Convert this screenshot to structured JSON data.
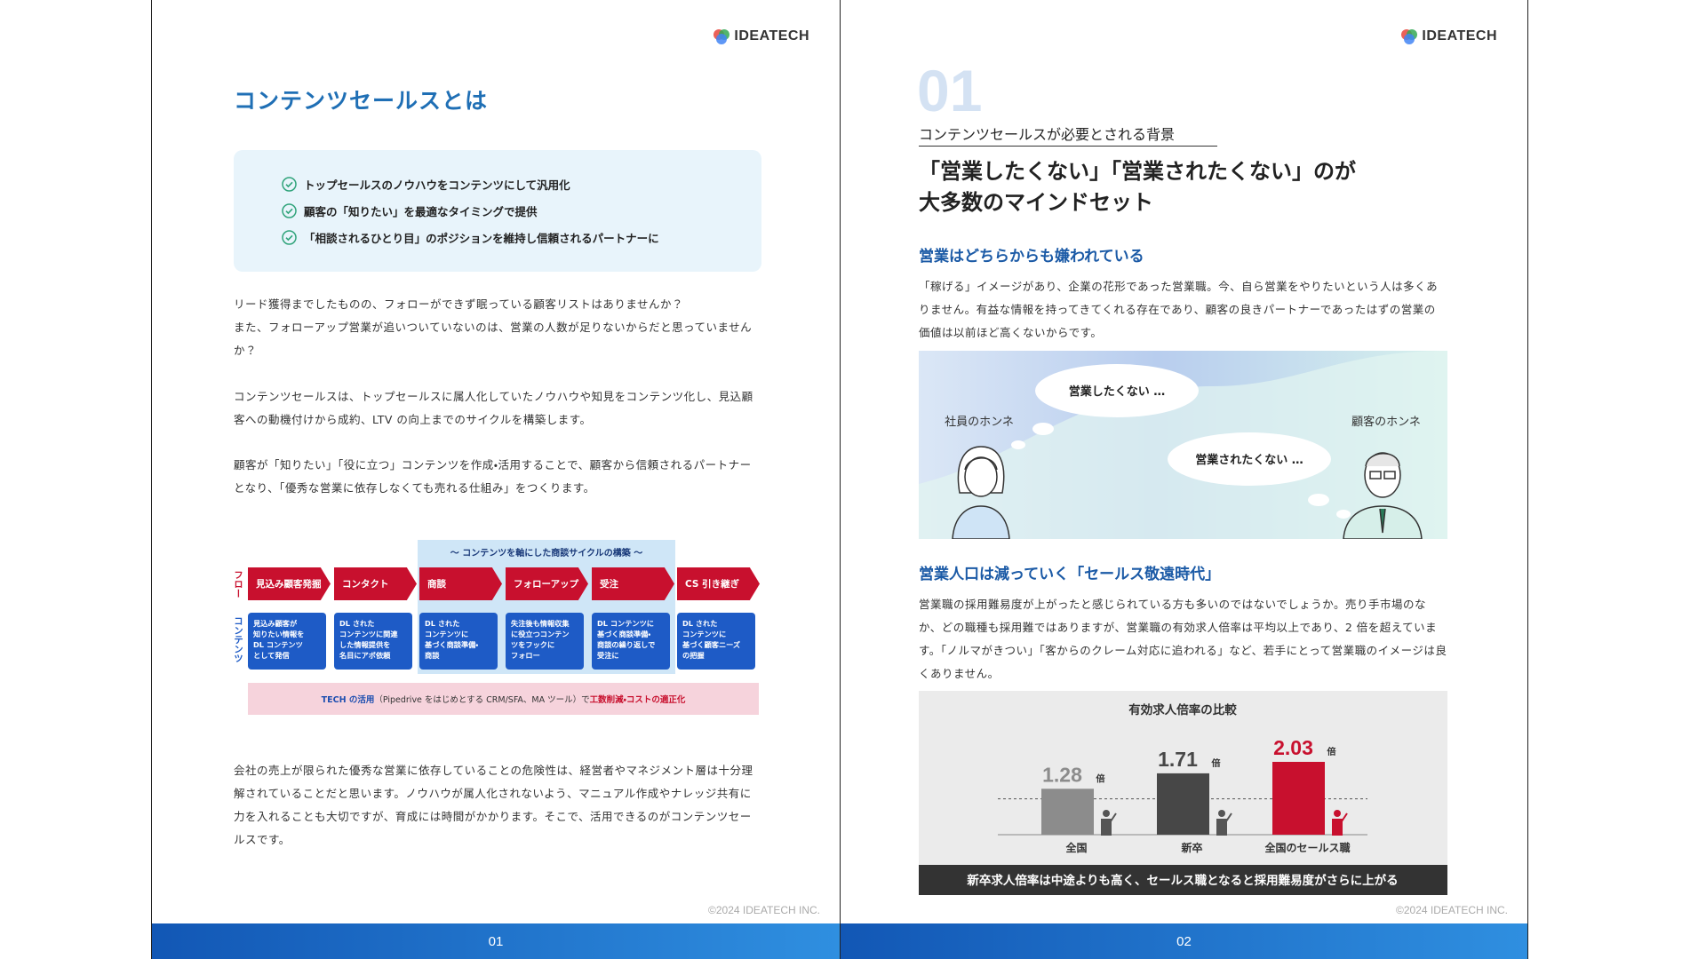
{
  "pages": [
    {
      "logo": "IDEATECH",
      "title": "コンテンツセールスとは",
      "checklist": [
        "トップセールスのノウハウをコンテンツにして汎用化",
        "顧客の「知りたい」を最適なタイミングで提供",
        "「相談されるひとり目」のポジションを維持し信頼されるパートナーに"
      ],
      "paragraphs": [
        "リード獲得までしたものの、フォローができず眠っている顧客リストはありませんか？\nまた、フォローアップ営業が追いついていないのは、営業の人数が足りないからだと思っていませんか？",
        "コンテンツセールスは、トップセールスに属人化していたノウハウや知見をコンテンツ化し、見込顧客への動機付けから成約、LTV の向上までのサイクルを構築します。",
        "顧客が「知りたい」「役に立つ」コンテンツを作成・活用することで、顧客から信頼されるパートナーとなり、「優秀な営業に依存しなくても売れる仕組み」をつくります。"
      ],
      "diagram": {
        "header": "〜 コンテンツを軸にした商談サイクルの構築 〜",
        "flow_label": "フロー",
        "content_label": "コンテンツ",
        "steps": [
          "見込み顧客発掘",
          "コンタクト",
          "商談",
          "フォローアップ",
          "受注",
          "CS 引き継ぎ"
        ],
        "contents": [
          "見込み顧客が\n知りたい情報を\nDL コンテンツ\nとして発信",
          "DL された\nコンテンツに関連\nした情報提供を\n名目にアポ依頼",
          "DL された\nコンテンツに\n基づく商談準備・\n商談",
          "失注後も情報収集\nに役立つコンテン\nツをフックに\nフォロー",
          "DL コンテンツに\n基づく商談準備・\n商談の繰り返しで\n受注に",
          "DL された\nコンテンツに\n基づく顧客ニーズ\nの把握"
        ],
        "footer": [
          "TECH の活用",
          "（Pipedrive をはじめとする CRM/SFA、MA ツール）で",
          "工数削減・コストの適正化"
        ]
      },
      "closing": "会社の売上が限られた優秀な営業に依存していることの危険性は、経営者やマネジメント層は十分理解されていることだと思います。ノウハウが属人化されないよう、マニュアル作成やナレッジ共有に力を入れることも大切ですが、育成には時間がかかります。そこで、活用できるのがコンテンツセールスです。",
      "copyright": "©2024 IDEATECH INC.",
      "page_number": "01"
    },
    {
      "logo": "IDEATECH",
      "section_number": "01",
      "section_label": "コンテンツセールスが必要とされる背景",
      "heading": [
        "「営業したくない」「営業されたくない」のが",
        "大多数のマインドセット"
      ],
      "subheading1": "営業はどちらからも嫌われている",
      "paragraph1": "「稼げる」イメージがあり、企業の花形であった営業職。今、自ら営業をやりたいという人は多くありません。有益な情報を持ってきてくれる存在であり、顧客の良きパートナーであったはずの営業の価値は以前ほど高くないからです。",
      "illustration": {
        "left_label": "社員のホンネ",
        "right_label": "顧客のホンネ",
        "left_bubble": "営業したくない …",
        "right_bubble": "営業されたくない …"
      },
      "subheading2": "営業人口は減っていく「セールス敬遠時代」",
      "paragraph2": "営業職の採用難易度が上がったと感じられている方も多いのではないでしょうか。売り手市場のなか、どの職種も採用難ではありますが、営業職の有効求人倍率は平均以上であり、2 倍を超えています。「ノルマがきつい」「客からのクレーム対応に追われる」など、若手にとって営業職のイメージは良くありません。",
      "chart": {
        "type": "bar",
        "title": "有効求人倍率の比較",
        "categories": [
          "全国",
          "新卒",
          "全国のセールス職"
        ],
        "values": [
          1.28,
          1.71,
          2.03
        ],
        "unit": "倍",
        "colors": [
          "#8c8c8c",
          "#474747",
          "#c8102e"
        ],
        "reference_line": 1
      },
      "chart_caption": "新卒求人倍率は中途よりも高く、セールス職となると採用難易度がさらに上がる",
      "copyright": "©2024 IDEATECH INC.",
      "page_number": "02"
    }
  ]
}
